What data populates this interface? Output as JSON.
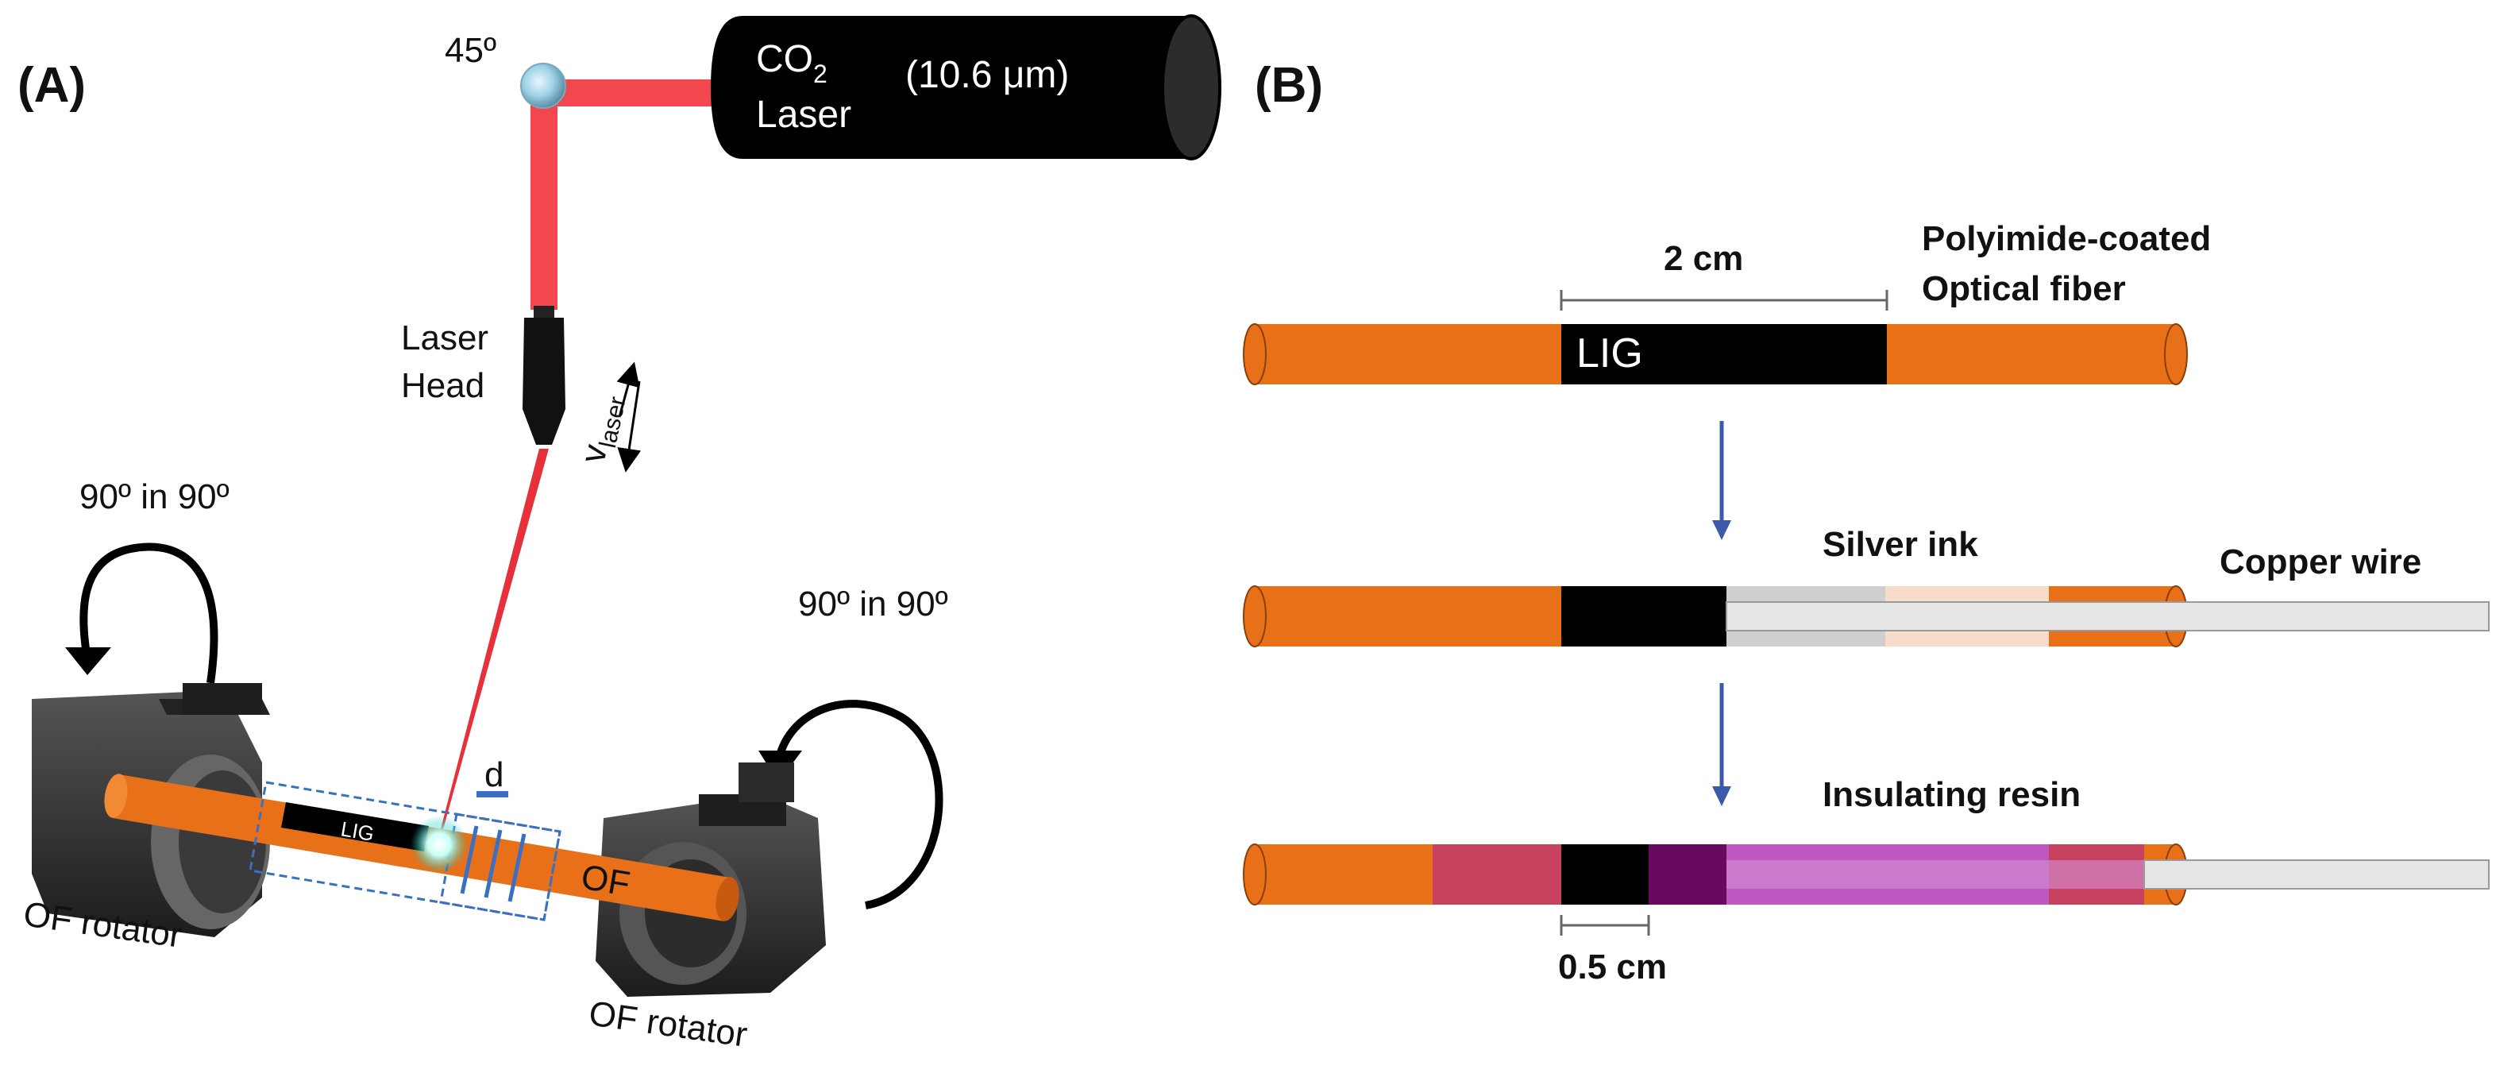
{
  "panel_a": {
    "label": "(A)",
    "mirror_angle": "45º",
    "laser": {
      "name_main": "CO",
      "name_sub": "2",
      "name_line2": "Laser",
      "wavelength": "(10.6 μm)"
    },
    "laser_head": {
      "line1": "Laser",
      "line2": "Head"
    },
    "velocity": {
      "symbol": "v",
      "subscript": "laser"
    },
    "rotation_left": "90º in 90º",
    "rotation_right": "90º in 90º",
    "distance": "d",
    "lig": "LIG",
    "fiber": "OF",
    "rotator_left": "OF rotator",
    "rotator_right": "OF rotator"
  },
  "panel_b": {
    "label": "(B)",
    "fiber_label_line1": "Polyimide-coated",
    "fiber_label_line2": "Optical fiber",
    "length_top": "2 cm",
    "lig": "LIG",
    "silver_ink": "Silver ink",
    "copper_wire": "Copper wire",
    "insulating_resin": "Insulating resin",
    "length_bottom": "0.5 cm"
  },
  "colors": {
    "fiber_orange": "#E87019",
    "laser_red": "#F2474E",
    "lig_black": "#000000",
    "resin_pink": "#C8415F",
    "resin_dark": "#680B5E",
    "resin_violet": "#BF59C1",
    "silver": "#E6E6E6",
    "arrow_blue": "#3B5BA9",
    "rotator_grey": "#3A3A3A"
  }
}
